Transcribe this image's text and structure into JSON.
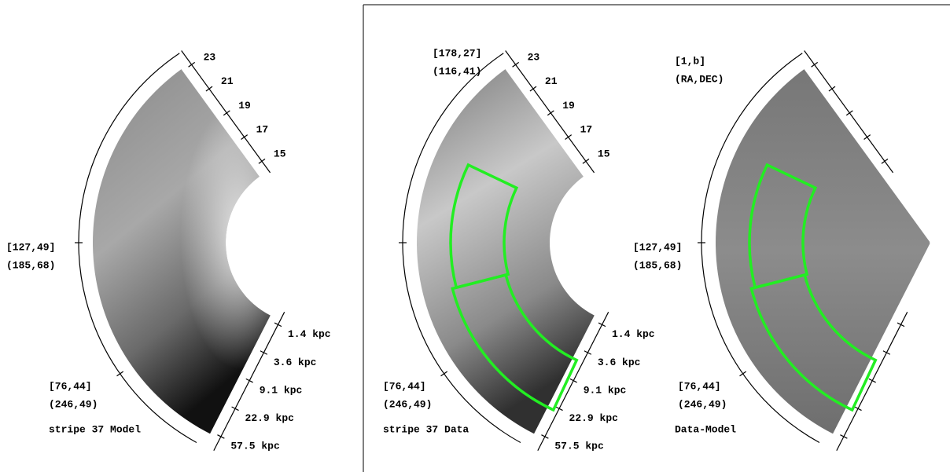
{
  "panels": [
    {
      "caption": "stripe 37 Model",
      "mag_ticks": [
        "23",
        "21",
        "19",
        "17",
        "15"
      ],
      "dist_ticks": [
        "1.4 kpc",
        "3.6 kpc",
        "9.1 kpc",
        "22.9 kpc",
        "57.5 kpc"
      ],
      "coords": [
        {
          "lb": "[127,49]",
          "radec": "(185,68)"
        },
        {
          "lb": "[76,44]",
          "radec": "(246,49)"
        }
      ]
    },
    {
      "caption": "stripe 37 Data",
      "mag_ticks": [
        "23",
        "21",
        "19",
        "17",
        "15"
      ],
      "dist_ticks": [
        "1.4 kpc",
        "3.6 kpc",
        "9.1 kpc",
        "22.9 kpc",
        "57.5 kpc"
      ],
      "coords": [
        {
          "lb": "[178,27]",
          "radec": "(116,41)"
        },
        {
          "lb": "[76,44]",
          "radec": "(246,49)"
        }
      ]
    },
    {
      "caption": "Data-Model",
      "coords": [
        {
          "lb": "[1,b]",
          "radec": "(RA,DEC)"
        },
        {
          "lb": "[127,49]",
          "radec": "(185,68)"
        },
        {
          "lb": "[76,44]",
          "radec": "(246,49)"
        }
      ]
    }
  ]
}
